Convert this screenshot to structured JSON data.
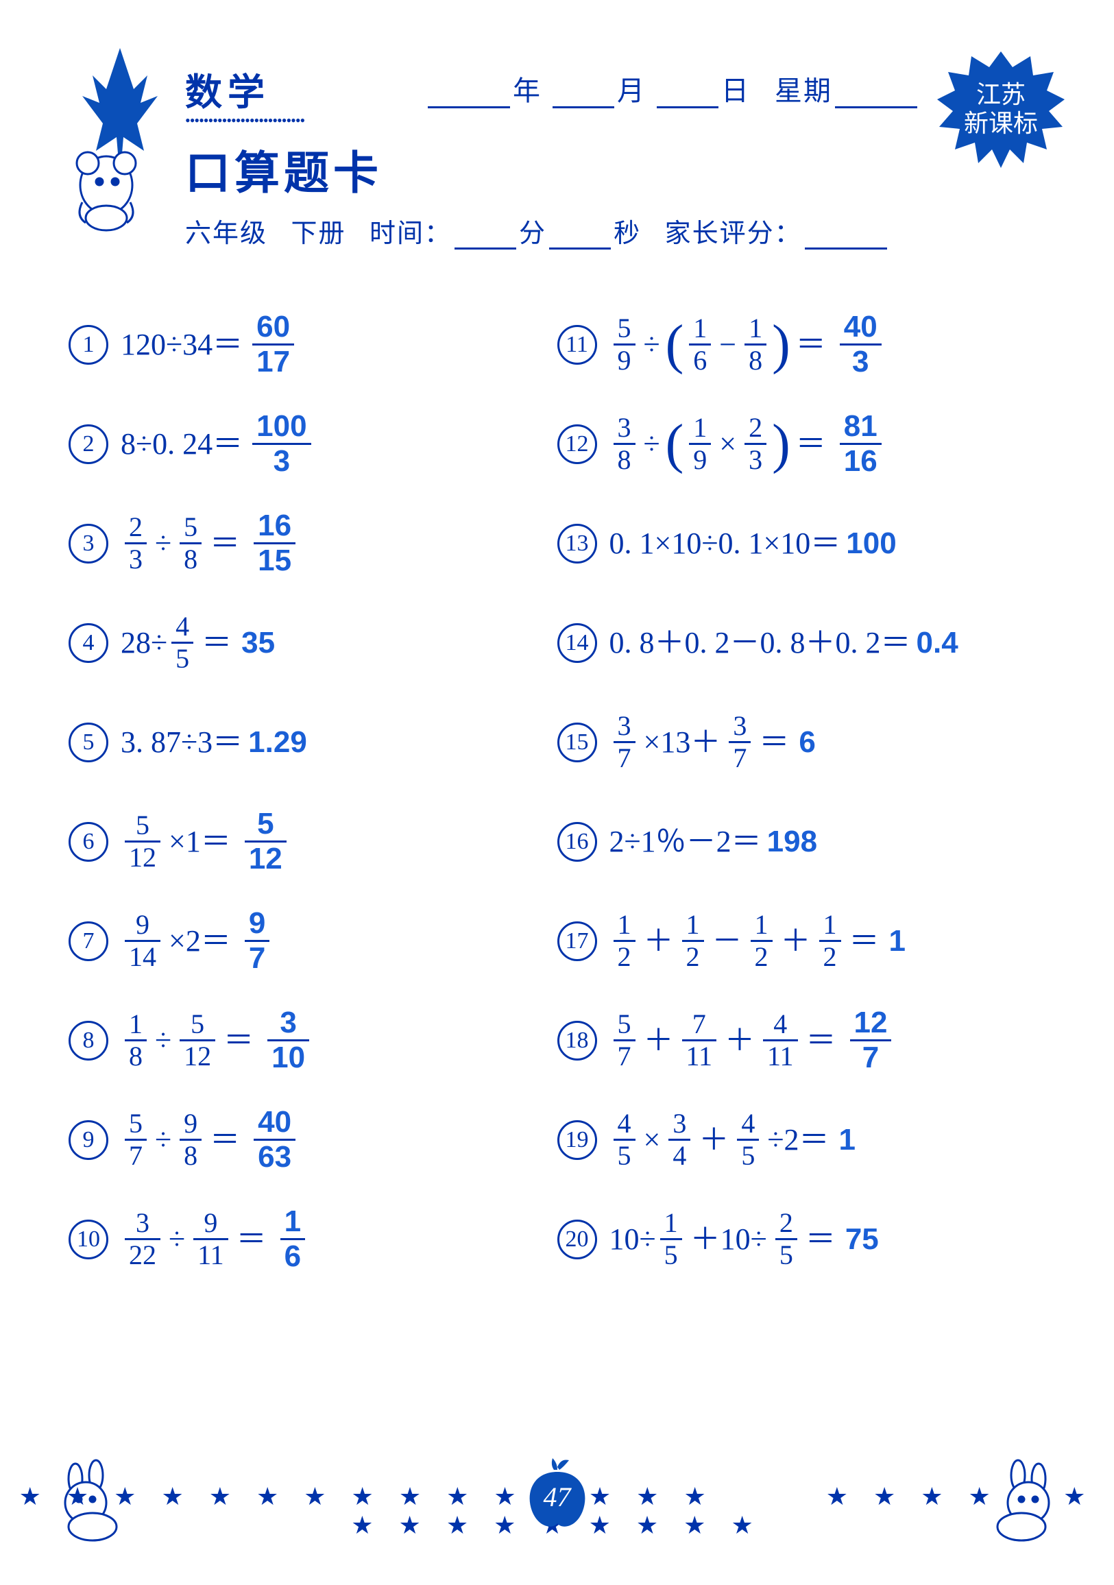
{
  "header": {
    "subject": "数学",
    "card_title": "口算题卡",
    "grade": "六年级",
    "volume": "下册",
    "time_label": "时间：",
    "min_label": "分",
    "sec_label": "秒",
    "parent_label": "家长评分：",
    "date_year": "年",
    "date_month": "月",
    "date_day": "日",
    "weekday": "星期",
    "badge_line1": "江苏",
    "badge_line2": "新课标"
  },
  "page_number": "47",
  "colors": {
    "ink": "#0033aa",
    "answer": "#1a5fd6",
    "bg": "#ffffff"
  },
  "problems_left": [
    {
      "n": "1",
      "parts": [
        {
          "t": "txt",
          "v": "120÷34＝"
        }
      ],
      "ans_frac": {
        "n": "60",
        "d": "17"
      }
    },
    {
      "n": "2",
      "parts": [
        {
          "t": "txt",
          "v": "8÷0. 24＝"
        }
      ],
      "ans_frac": {
        "n": "100",
        "d": "3"
      }
    },
    {
      "n": "3",
      "parts": [
        {
          "t": "frac",
          "n": "2",
          "d": "3"
        },
        {
          "t": "op",
          "v": "÷"
        },
        {
          "t": "frac",
          "n": "5",
          "d": "8"
        },
        {
          "t": "op",
          "v": "＝"
        }
      ],
      "ans_frac": {
        "n": "16",
        "d": "15"
      }
    },
    {
      "n": "4",
      "parts": [
        {
          "t": "txt",
          "v": "28÷"
        },
        {
          "t": "frac",
          "n": "4",
          "d": "5"
        },
        {
          "t": "op",
          "v": "＝"
        }
      ],
      "ans_txt": "35"
    },
    {
      "n": "5",
      "parts": [
        {
          "t": "txt",
          "v": "3. 87÷3＝"
        }
      ],
      "ans_txt": "1.29"
    },
    {
      "n": "6",
      "parts": [
        {
          "t": "frac",
          "n": "5",
          "d": "12"
        },
        {
          "t": "op",
          "v": "×1＝"
        }
      ],
      "ans_frac": {
        "n": "5",
        "d": "12"
      }
    },
    {
      "n": "7",
      "parts": [
        {
          "t": "frac",
          "n": "9",
          "d": "14"
        },
        {
          "t": "op",
          "v": "×2＝"
        }
      ],
      "ans_frac": {
        "n": "9",
        "d": "7"
      }
    },
    {
      "n": "8",
      "parts": [
        {
          "t": "frac",
          "n": "1",
          "d": "8"
        },
        {
          "t": "op",
          "v": "÷"
        },
        {
          "t": "frac",
          "n": "5",
          "d": "12"
        },
        {
          "t": "op",
          "v": "＝"
        }
      ],
      "ans_frac": {
        "n": "3",
        "d": "10"
      }
    },
    {
      "n": "9",
      "parts": [
        {
          "t": "frac",
          "n": "5",
          "d": "7"
        },
        {
          "t": "op",
          "v": "÷"
        },
        {
          "t": "frac",
          "n": "9",
          "d": "8"
        },
        {
          "t": "op",
          "v": "＝"
        }
      ],
      "ans_frac": {
        "n": "40",
        "d": "63"
      }
    },
    {
      "n": "10",
      "parts": [
        {
          "t": "frac",
          "n": "3",
          "d": "22"
        },
        {
          "t": "op",
          "v": "÷"
        },
        {
          "t": "frac",
          "n": "9",
          "d": "11"
        },
        {
          "t": "op",
          "v": "＝"
        }
      ],
      "ans_frac": {
        "n": "1",
        "d": "6"
      }
    }
  ],
  "problems_right": [
    {
      "n": "11",
      "parts": [
        {
          "t": "frac",
          "n": "5",
          "d": "9"
        },
        {
          "t": "op",
          "v": "÷"
        },
        {
          "t": "lp"
        },
        {
          "t": "frac",
          "n": "1",
          "d": "6"
        },
        {
          "t": "op",
          "v": "−"
        },
        {
          "t": "frac",
          "n": "1",
          "d": "8"
        },
        {
          "t": "rp"
        },
        {
          "t": "op",
          "v": "＝"
        }
      ],
      "ans_frac": {
        "n": "40",
        "d": "3"
      }
    },
    {
      "n": "12",
      "parts": [
        {
          "t": "frac",
          "n": "3",
          "d": "8"
        },
        {
          "t": "op",
          "v": "÷"
        },
        {
          "t": "lp"
        },
        {
          "t": "frac",
          "n": "1",
          "d": "9"
        },
        {
          "t": "op",
          "v": "×"
        },
        {
          "t": "frac",
          "n": "2",
          "d": "3"
        },
        {
          "t": "rp"
        },
        {
          "t": "op",
          "v": "＝"
        }
      ],
      "ans_frac": {
        "n": "81",
        "d": "16"
      }
    },
    {
      "n": "13",
      "parts": [
        {
          "t": "txt",
          "v": "0. 1×10÷0. 1×10＝"
        }
      ],
      "ans_txt": "100"
    },
    {
      "n": "14",
      "parts": [
        {
          "t": "txt",
          "v": "0. 8＋0. 2－0. 8＋0. 2＝"
        }
      ],
      "ans_txt": "0.4"
    },
    {
      "n": "15",
      "parts": [
        {
          "t": "frac",
          "n": "3",
          "d": "7"
        },
        {
          "t": "op",
          "v": "×13＋"
        },
        {
          "t": "frac",
          "n": "3",
          "d": "7"
        },
        {
          "t": "op",
          "v": "＝"
        }
      ],
      "ans_txt": "6"
    },
    {
      "n": "16",
      "parts": [
        {
          "t": "txt",
          "v": "2÷1％－2＝"
        }
      ],
      "ans_txt": "198"
    },
    {
      "n": "17",
      "parts": [
        {
          "t": "frac",
          "n": "1",
          "d": "2"
        },
        {
          "t": "op",
          "v": "＋"
        },
        {
          "t": "frac",
          "n": "1",
          "d": "2"
        },
        {
          "t": "op",
          "v": "－"
        },
        {
          "t": "frac",
          "n": "1",
          "d": "2"
        },
        {
          "t": "op",
          "v": "＋"
        },
        {
          "t": "frac",
          "n": "1",
          "d": "2"
        },
        {
          "t": "op",
          "v": "＝"
        }
      ],
      "ans_txt": "1"
    },
    {
      "n": "18",
      "parts": [
        {
          "t": "frac",
          "n": "5",
          "d": "7"
        },
        {
          "t": "op",
          "v": "＋"
        },
        {
          "t": "frac",
          "n": "7",
          "d": "11"
        },
        {
          "t": "op",
          "v": "＋"
        },
        {
          "t": "frac",
          "n": "4",
          "d": "11"
        },
        {
          "t": "op",
          "v": "＝"
        }
      ],
      "ans_frac": {
        "n": "12",
        "d": "7"
      }
    },
    {
      "n": "19",
      "parts": [
        {
          "t": "frac",
          "n": "4",
          "d": "5"
        },
        {
          "t": "op",
          "v": "×"
        },
        {
          "t": "frac",
          "n": "3",
          "d": "4"
        },
        {
          "t": "op",
          "v": "＋"
        },
        {
          "t": "frac",
          "n": "4",
          "d": "5"
        },
        {
          "t": "op",
          "v": "÷2＝"
        }
      ],
      "ans_txt": "1"
    },
    {
      "n": "20",
      "parts": [
        {
          "t": "txt",
          "v": "10÷"
        },
        {
          "t": "frac",
          "n": "1",
          "d": "5"
        },
        {
          "t": "op",
          "v": "＋10÷"
        },
        {
          "t": "frac",
          "n": "2",
          "d": "5"
        },
        {
          "t": "op",
          "v": "＝"
        }
      ],
      "ans_txt": "75"
    }
  ]
}
